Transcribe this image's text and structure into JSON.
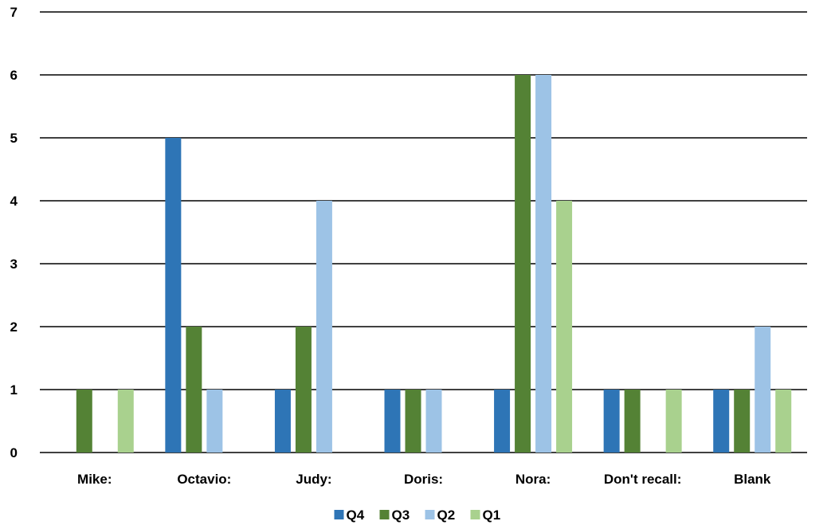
{
  "chart_data": {
    "type": "bar",
    "title": "",
    "xlabel": "",
    "ylabel": "",
    "ylim": [
      0,
      7
    ],
    "yticks": [
      "0",
      "1",
      "2",
      "3",
      "4",
      "5",
      "6",
      "7"
    ],
    "grid": "horizontal",
    "legend_position": "bottom",
    "categories": [
      "Mike:",
      "Octavio:",
      "Judy:",
      "Doris:",
      "Nora:",
      "Don't recall:",
      "Blank"
    ],
    "series": [
      {
        "name": "Q4",
        "color": "#2e75b6",
        "values": [
          0,
          5,
          1,
          1,
          1,
          1,
          1
        ]
      },
      {
        "name": "Q3",
        "color": "#548235",
        "values": [
          1,
          2,
          2,
          1,
          6,
          1,
          1
        ]
      },
      {
        "name": "Q2",
        "color": "#9dc3e6",
        "values": [
          0,
          1,
          4,
          1,
          6,
          0,
          2
        ]
      },
      {
        "name": "Q1",
        "color": "#a9d18e",
        "values": [
          1,
          0,
          0,
          0,
          4,
          1,
          1
        ]
      }
    ]
  }
}
